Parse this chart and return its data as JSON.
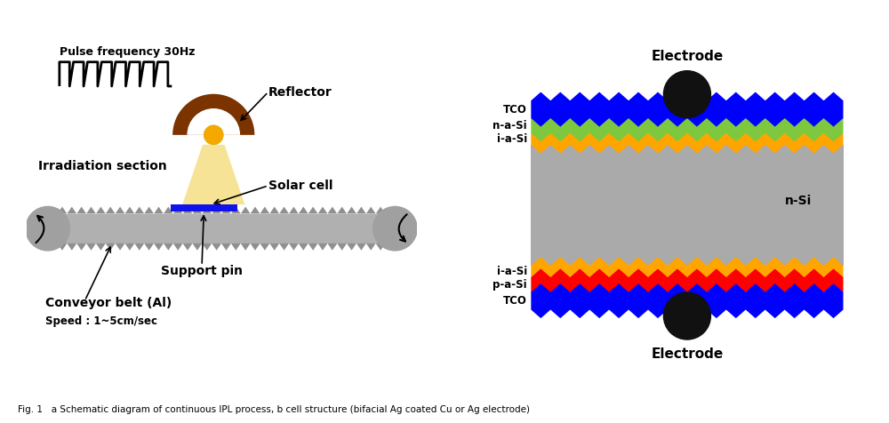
{
  "bg_color": "#ffffff",
  "fig_caption": "Fig. 1   a Schematic diagram of continuous IPL process, b cell structure (bifacial Ag coated Cu or Ag electrode)",
  "panel_a": {
    "pulse_label": "Pulse frequency 30Hz",
    "reflector_label": "Reflector",
    "irradiation_label": "Irradiation section",
    "solar_cell_label": "Solar cell",
    "support_pin_label": "Support pin",
    "conveyor_label": "Conveyor belt (Al)",
    "speed_label": "Speed : 1~5cm/sec",
    "belt_color": "#b0b0b0",
    "belt_spike_color": "#909090",
    "roller_color": "#a0a0a0",
    "solar_cell_color": "#1111ee",
    "light_color": "#f5e08a",
    "reflector_color": "#7b3300",
    "lamp_color": "#f5a800"
  },
  "panel_b": {
    "electrode_top_label": "Electrode",
    "electrode_bot_label": "Electrode",
    "tco_top_label": "TCO",
    "n_a_si_label": "n-a-Si",
    "i_a_si_top_label": "i-a-Si",
    "n_si_label": "n-Si",
    "i_a_si_bot_label": "i-a-Si",
    "p_a_si_label": "p-a-Si",
    "tco_bot_label": "TCO",
    "color_blue": "#0000ff",
    "color_green": "#7dc83e",
    "color_yellow": "#ffa500",
    "color_gray": "#aaaaaa",
    "color_red": "#ff0000",
    "color_black": "#111111"
  }
}
